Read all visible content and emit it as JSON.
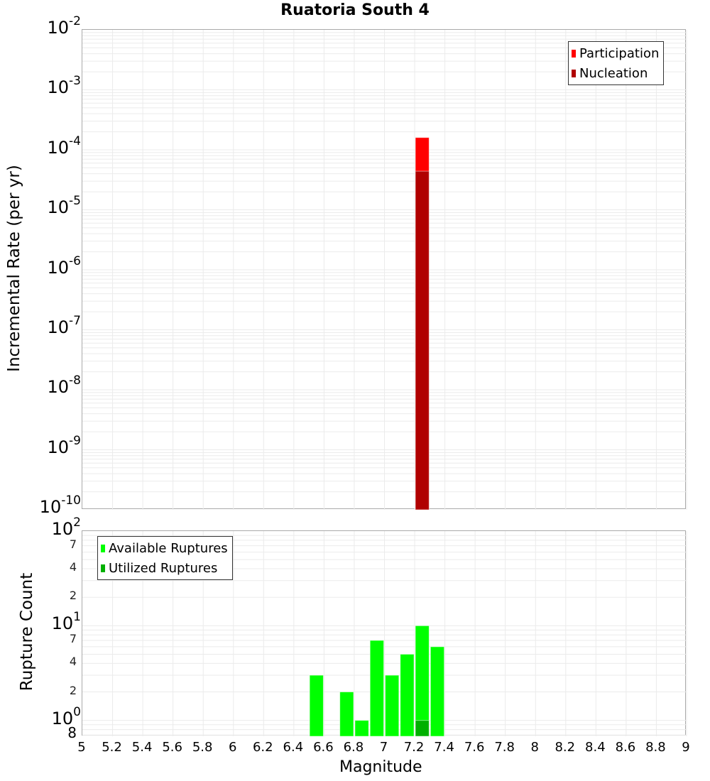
{
  "title": "Ruatoria South 4",
  "top_chart": {
    "ylabel": "Incremental Rate (per yr)",
    "legend": [
      {
        "label": "Participation",
        "color": "#ff0000"
      },
      {
        "label": "Nucleation",
        "color": "#b00000"
      }
    ]
  },
  "bottom_chart": {
    "ylabel": "Rupture Count",
    "xlabel": "Magnitude",
    "legend": [
      {
        "label": "Available Ruptures",
        "color": "#00ff00"
      },
      {
        "label": "Utilized Ruptures",
        "color": "#00b000"
      }
    ]
  },
  "chart_data": [
    {
      "type": "bar",
      "title": "Ruatoria South 4",
      "xlabel": "",
      "ylabel": "Incremental Rate (per yr)",
      "yscale": "log",
      "xlim": [
        5,
        9
      ],
      "ylim": [
        1e-10,
        0.01
      ],
      "grid": true,
      "legend_position": "top-right",
      "y_tick_labels": [
        "10^-2",
        "10^-3",
        "10^-4",
        "10^-5",
        "10^-6",
        "10^-7",
        "10^-8",
        "10^-9",
        "10^-10"
      ],
      "series": [
        {
          "name": "Participation",
          "color": "#ff0000",
          "x": [
            7.25
          ],
          "values": [
            0.00016
          ]
        },
        {
          "name": "Nucleation",
          "color": "#b00000",
          "x": [
            7.25
          ],
          "values": [
            4.4e-05
          ]
        }
      ]
    },
    {
      "type": "bar",
      "title": "",
      "xlabel": "Magnitude",
      "ylabel": "Rupture Count",
      "yscale": "log",
      "xlim": [
        5,
        9
      ],
      "ylim": [
        0.68,
        100
      ],
      "grid": true,
      "legend_position": "top-left",
      "x_tick_labels": [
        "5",
        "5.2",
        "5.4",
        "5.6",
        "5.8",
        "6",
        "6.2",
        "6.4",
        "6.6",
        "6.8",
        "7",
        "7.2",
        "7.4",
        "7.6",
        "7.8",
        "8",
        "8.2",
        "8.4",
        "8.6",
        "8.8",
        "9"
      ],
      "y_tick_labels": [
        "10^2",
        "7",
        "4",
        "2",
        "10^1",
        "7",
        "4",
        "2",
        "10^0",
        "8"
      ],
      "series": [
        {
          "name": "Available Ruptures",
          "color": "#00ff00",
          "x": [
            6.55,
            6.75,
            6.85,
            6.95,
            7.05,
            7.15,
            7.25,
            7.35
          ],
          "values": [
            3,
            2,
            1,
            7,
            3,
            5,
            10,
            6
          ]
        },
        {
          "name": "Utilized Ruptures",
          "color": "#00b000",
          "x": [
            7.25
          ],
          "values": [
            1
          ]
        }
      ]
    }
  ]
}
